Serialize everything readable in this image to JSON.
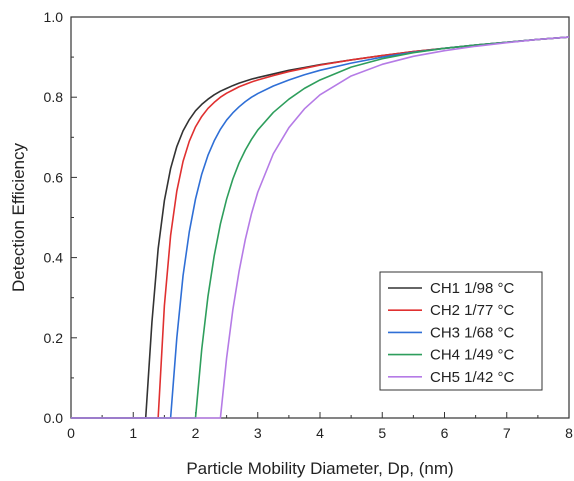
{
  "chart_data": {
    "type": "line",
    "title": "",
    "xlabel": "Particle Mobility Diameter, Dp, (nm)",
    "ylabel": "Detection Efficiency",
    "xlim": [
      0,
      8
    ],
    "ylim": [
      0.0,
      1.0
    ],
    "xticks": [
      "0",
      "1",
      "2",
      "3",
      "4",
      "5",
      "6",
      "7",
      "8"
    ],
    "yticks": [
      "0.0",
      "0.2",
      "0.4",
      "0.6",
      "0.8",
      "1.0"
    ],
    "grid": false,
    "legend_position": "bottom-right",
    "x": [
      0,
      0.5,
      1.0,
      1.2,
      1.3,
      1.4,
      1.5,
      1.6,
      1.7,
      1.8,
      1.9,
      2.0,
      2.1,
      2.2,
      2.3,
      2.4,
      2.5,
      2.6,
      2.7,
      2.8,
      2.9,
      3.0,
      3.25,
      3.5,
      3.75,
      4.0,
      4.5,
      5.0,
      5.5,
      6.0,
      6.5,
      7.0,
      7.5,
      8.0
    ],
    "series": [
      {
        "name": "CH1 1/98 °C",
        "color": "#333333",
        "values": [
          0,
          0,
          0,
          0.0,
          0.239,
          0.422,
          0.542,
          0.622,
          0.677,
          0.716,
          0.744,
          0.766,
          0.782,
          0.795,
          0.806,
          0.815,
          0.822,
          0.829,
          0.835,
          0.84,
          0.845,
          0.849,
          0.858,
          0.867,
          0.874,
          0.881,
          0.893,
          0.904,
          0.914,
          0.922,
          0.93,
          0.937,
          0.944,
          0.95
        ]
      },
      {
        "name": "CH2 1/77 °C",
        "color": "#e03030",
        "values": [
          0,
          0,
          0,
          0,
          0,
          0.0,
          0.28,
          0.455,
          0.566,
          0.64,
          0.69,
          0.726,
          0.752,
          0.772,
          0.787,
          0.8,
          0.81,
          0.818,
          0.826,
          0.832,
          0.838,
          0.843,
          0.854,
          0.864,
          0.872,
          0.88,
          0.893,
          0.904,
          0.914,
          0.922,
          0.93,
          0.937,
          0.944,
          0.95
        ]
      },
      {
        "name": "CH3 1/68 °C",
        "color": "#2f6fd6",
        "values": [
          0,
          0,
          0,
          0,
          0,
          0,
          0,
          0.0,
          0.2,
          0.355,
          0.464,
          0.546,
          0.608,
          0.655,
          0.691,
          0.72,
          0.743,
          0.761,
          0.776,
          0.789,
          0.8,
          0.809,
          0.828,
          0.843,
          0.856,
          0.867,
          0.885,
          0.9,
          0.912,
          0.922,
          0.93,
          0.937,
          0.944,
          0.95
        ]
      },
      {
        "name": "CH4 1/49 °C",
        "color": "#2e9e5c",
        "values": [
          0,
          0,
          0,
          0,
          0,
          0,
          0,
          0,
          0,
          0,
          0,
          0.0,
          0.171,
          0.303,
          0.404,
          0.484,
          0.546,
          0.596,
          0.636,
          0.668,
          0.695,
          0.718,
          0.762,
          0.795,
          0.822,
          0.843,
          0.875,
          0.896,
          0.911,
          0.922,
          0.93,
          0.937,
          0.944,
          0.95
        ]
      },
      {
        "name": "CH5 1/42 °C",
        "color": "#b57be6",
        "values": [
          0,
          0,
          0,
          0,
          0,
          0,
          0,
          0,
          0,
          0,
          0,
          0,
          0,
          0,
          0,
          0.0,
          0.15,
          0.27,
          0.366,
          0.445,
          0.51,
          0.563,
          0.659,
          0.724,
          0.771,
          0.806,
          0.853,
          0.882,
          0.902,
          0.916,
          0.927,
          0.936,
          0.944,
          0.95
        ]
      }
    ]
  }
}
